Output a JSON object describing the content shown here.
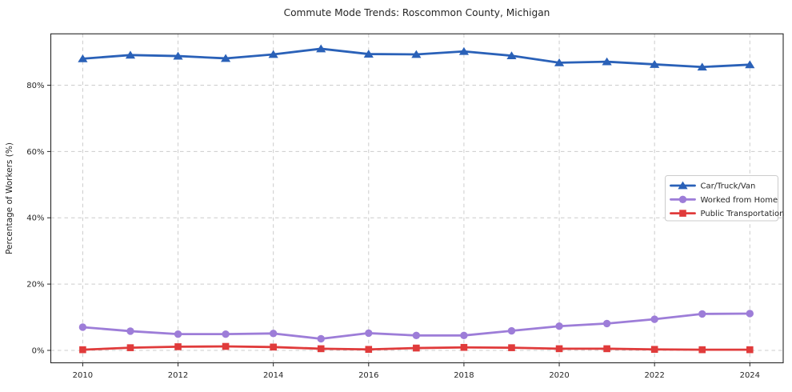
{
  "page": {
    "title": "Commute Mode Trends: Roscommon County, Michigan"
  },
  "chart_data": {
    "type": "line",
    "title": "Commute Mode Trends: Roscommon County, Michigan",
    "xlabel": "",
    "ylabel": "Percentage of Workers (%)",
    "x": [
      2010,
      2011,
      2012,
      2013,
      2014,
      2015,
      2016,
      2017,
      2018,
      2019,
      2020,
      2021,
      2022,
      2023,
      2024
    ],
    "series": [
      {
        "name": "Car/Truck/Van",
        "color": "#2a61b8",
        "marker": "triangle",
        "values": [
          88.0,
          89.1,
          88.8,
          88.1,
          89.3,
          91.0,
          89.4,
          89.3,
          90.2,
          88.9,
          86.8,
          87.1,
          86.3,
          85.5,
          86.2
        ]
      },
      {
        "name": "Worked from Home",
        "color": "#9d7dd8",
        "marker": "circle",
        "values": [
          7.0,
          5.8,
          4.9,
          4.9,
          5.1,
          3.5,
          5.2,
          4.5,
          4.5,
          5.9,
          7.3,
          8.1,
          9.4,
          11.0,
          11.1
        ]
      },
      {
        "name": "Public Transportation",
        "color": "#e03b3b",
        "marker": "square",
        "values": [
          0.2,
          0.8,
          1.1,
          1.2,
          1.0,
          0.5,
          0.3,
          0.7,
          0.9,
          0.8,
          0.5,
          0.5,
          0.3,
          0.2,
          0.2
        ]
      }
    ],
    "xticks": [
      2010,
      2012,
      2014,
      2016,
      2018,
      2020,
      2022,
      2024
    ],
    "xtick_labels": [
      "2010",
      "2012",
      "2014",
      "2016",
      "2018",
      "2020",
      "2022",
      "2024"
    ],
    "yticks": [
      0,
      20,
      40,
      60,
      80
    ],
    "ytick_labels": [
      "0%",
      "20%",
      "40%",
      "60%",
      "80%"
    ],
    "xlim": [
      2009.33,
      2024.7
    ],
    "ylim": [
      -3.75,
      95.5
    ],
    "grid": true,
    "grid_style": "dashed",
    "grid_color": "#cccccc",
    "axis_color": "#262626",
    "legend_position": "center-right",
    "legend_labels": [
      "Car/Truck/Van",
      "Worked from Home",
      "Public Transportation"
    ]
  }
}
